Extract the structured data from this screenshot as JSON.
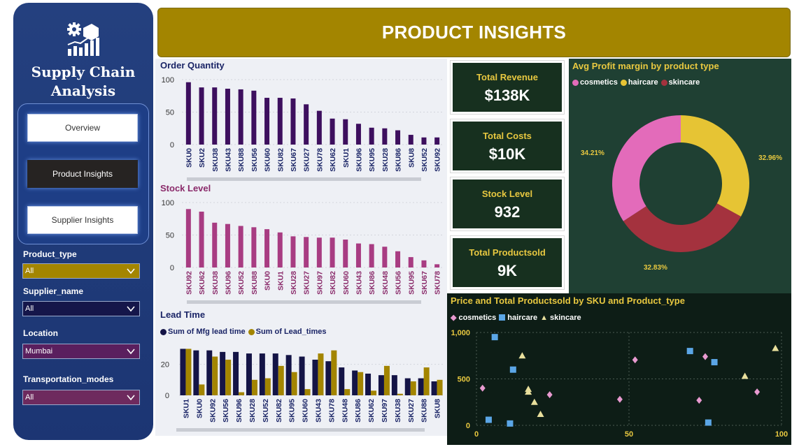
{
  "header": {
    "title": "PRODUCT INSIGHTS"
  },
  "sidebar": {
    "title_line1": "Supply Chain",
    "title_line2": "Analysis",
    "nav": [
      {
        "label": "Overview",
        "active": false
      },
      {
        "label": "Product Insights",
        "active": true
      },
      {
        "label": "Supplier Insights",
        "active": false
      }
    ],
    "filters": [
      {
        "label": "Product_type",
        "value": "All",
        "color": "#a38500"
      },
      {
        "label": "Supplier_name",
        "value": "All",
        "color": "#15164a"
      },
      {
        "label": "Location",
        "value": "Mumbai",
        "color": "#5a1f5e"
      },
      {
        "label": "Transportation_modes",
        "value": "All",
        "color": "#6e2a5e"
      }
    ]
  },
  "kpis": [
    {
      "label": "Total Revenue",
      "value": "$138K"
    },
    {
      "label": "Total Costs",
      "value": "$10K"
    },
    {
      "label": "Stock Level",
      "value": "932"
    },
    {
      "label": "Total Productsold",
      "value": "9K"
    }
  ],
  "chart_data": [
    {
      "type": "bar",
      "title": "Order Quantity",
      "categories": [
        "SKU0",
        "SKU2",
        "SKU38",
        "SKU43",
        "SKU88",
        "SKU56",
        "SKU60",
        "SKU82",
        "SKU67",
        "SKU27",
        "SKU78",
        "SKU62",
        "SKU1",
        "SKU96",
        "SKU95",
        "SKU28",
        "SKU86",
        "SKU8",
        "SKU52",
        "SKU92"
      ],
      "values": [
        96,
        88,
        88,
        86,
        85,
        83,
        72,
        72,
        71,
        62,
        52,
        40,
        39,
        32,
        26,
        25,
        22,
        15,
        11,
        11
      ],
      "yticks": [
        0,
        50,
        100
      ],
      "ylim": [
        0,
        100
      ],
      "color": "#3d0f5e"
    },
    {
      "type": "bar",
      "title": "Stock Level",
      "categories": [
        "SKU92",
        "SKU62",
        "SKU38",
        "SKU96",
        "SKU52",
        "SKU88",
        "SKU0",
        "SKU1",
        "SKU28",
        "SKU27",
        "SKU97",
        "SKU82",
        "SKU60",
        "SKU43",
        "SKU86",
        "SKU48",
        "SKU56",
        "SKU95",
        "SKU67",
        "SKU78"
      ],
      "values": [
        90,
        86,
        69,
        67,
        64,
        62,
        59,
        54,
        48,
        47,
        46,
        46,
        43,
        37,
        36,
        32,
        25,
        16,
        11,
        5
      ],
      "yticks": [
        0,
        50,
        100
      ],
      "ylim": [
        0,
        100
      ],
      "color": "#a83c82"
    },
    {
      "type": "bar",
      "title": "Lead Time",
      "categories": [
        "SKU1",
        "SKU0",
        "SKU92",
        "SKU56",
        "SKU96",
        "SKU28",
        "SKU52",
        "SKU82",
        "SKU95",
        "SKU60",
        "SKU43",
        "SKU78",
        "SKU48",
        "SKU86",
        "SKU62",
        "SKU97",
        "SKU38",
        "SKU27",
        "SKU88",
        "SKU8"
      ],
      "series": [
        {
          "name": "Sum of Mfg lead time",
          "color": "#141446",
          "values": [
            30,
            29,
            29,
            28,
            28,
            27,
            27,
            27,
            26,
            25,
            23,
            22,
            18,
            16,
            14,
            13,
            13,
            11,
            11,
            9
          ]
        },
        {
          "name": "Sum of Lead_times",
          "color": "#a38500",
          "values": [
            30,
            7,
            25,
            23,
            2,
            10,
            11,
            19,
            15,
            4,
            27,
            29,
            4,
            15,
            3,
            19,
            1,
            9,
            18,
            10
          ]
        }
      ],
      "yticks": [
        0,
        20
      ],
      "ylim": [
        0,
        32
      ]
    },
    {
      "type": "pie",
      "title": "Avg Profit margin by product type",
      "labels": [
        "cosmetics",
        "haircare",
        "skincare"
      ],
      "values": [
        34.21,
        32.96,
        32.83
      ],
      "value_labels": [
        "34.21%",
        "32.96%",
        "32.83%"
      ],
      "colors": [
        "#e36bba",
        "#e6c434",
        "#a4323e"
      ]
    },
    {
      "type": "scatter",
      "title": "Price and Total Productsold by SKU and Product_type",
      "xlim": [
        0,
        100
      ],
      "ylim": [
        0,
        1000
      ],
      "xticks": [
        0,
        50,
        100
      ],
      "yticks": [
        0,
        500,
        1000
      ],
      "ytick_labels": [
        "0",
        "500",
        "1,000"
      ],
      "series": [
        {
          "name": "cosmetics",
          "color": "#e89ad0",
          "marker": "diamond",
          "points": [
            [
              2,
              400
            ],
            [
              52,
              705
            ],
            [
              24,
              330
            ],
            [
              47,
              280
            ],
            [
              75,
              740
            ],
            [
              73,
              270
            ],
            [
              92,
              360
            ]
          ]
        },
        {
          "name": "haircare",
          "color": "#5ba6e6",
          "marker": "square",
          "points": [
            [
              6,
              950
            ],
            [
              12,
              600
            ],
            [
              4,
              60
            ],
            [
              11,
              20
            ],
            [
              70,
              800
            ],
            [
              78,
              680
            ],
            [
              76,
              30
            ]
          ]
        },
        {
          "name": "skincare",
          "color": "#e8df9c",
          "marker": "triangle",
          "points": [
            [
              15,
              750
            ],
            [
              17,
              390
            ],
            [
              17,
              360
            ],
            [
              19,
              250
            ],
            [
              21,
              120
            ],
            [
              88,
              530
            ],
            [
              98,
              830
            ]
          ]
        }
      ]
    }
  ]
}
